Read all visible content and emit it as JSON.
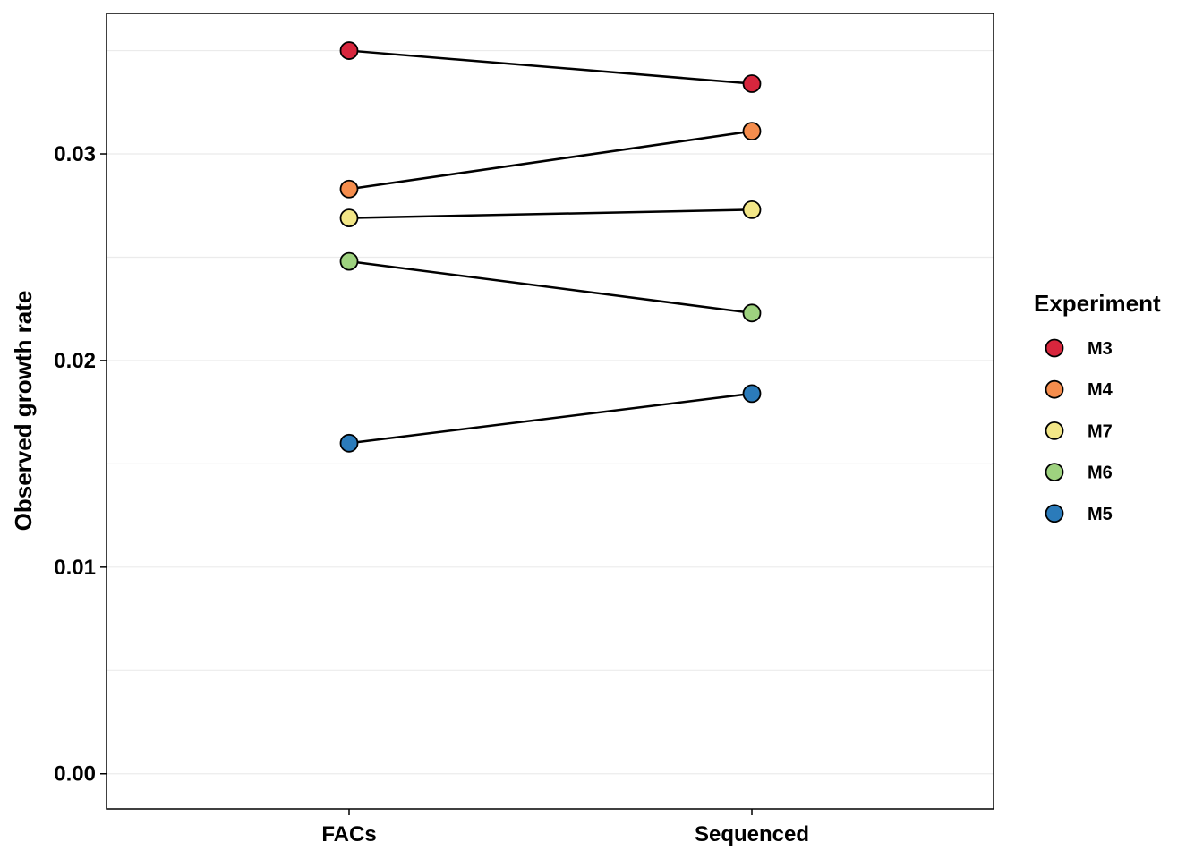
{
  "chart_data": {
    "type": "line",
    "title": "",
    "xlabel": "",
    "ylabel": "Observed growth rate",
    "categories": [
      "FACs",
      "Sequenced"
    ],
    "ylim": [
      -0.0017,
      0.0368
    ],
    "yticks": [
      0.0,
      0.01,
      0.02,
      0.03
    ],
    "ytick_labels": [
      "0.00",
      "0.01",
      "0.02",
      "0.03"
    ],
    "minor_gridlines": [
      0.005,
      0.015,
      0.025,
      0.035
    ],
    "grid": "horizontal",
    "legend": {
      "title": "Experiment",
      "position": "right"
    },
    "series": [
      {
        "name": "M3",
        "color": "#d7263d",
        "values": [
          0.035,
          0.0334
        ]
      },
      {
        "name": "M4",
        "color": "#f58d4d",
        "values": [
          0.0283,
          0.0311
        ]
      },
      {
        "name": "M7",
        "color": "#f2e687",
        "values": [
          0.0269,
          0.0273
        ]
      },
      {
        "name": "M6",
        "color": "#9ed27f",
        "values": [
          0.0248,
          0.0223
        ]
      },
      {
        "name": "M5",
        "color": "#2b7bba",
        "values": [
          0.016,
          0.0184
        ]
      }
    ]
  }
}
